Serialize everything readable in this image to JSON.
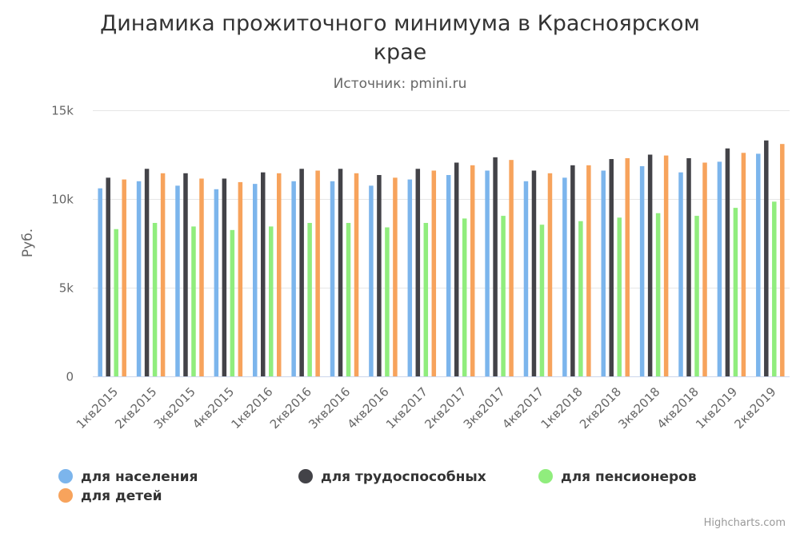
{
  "chart_data": {
    "type": "bar",
    "title_lines": [
      "Динамика прожиточного минимума в Красноярском",
      "крае"
    ],
    "subtitle": "Источник: pmini.ru",
    "ylabel": "Руб.",
    "xlabel": "",
    "ylim": [
      0,
      15000
    ],
    "yticks": [
      0,
      5000,
      10000,
      15000
    ],
    "ytick_labels": [
      "0",
      "5k",
      "10k",
      "15k"
    ],
    "grid": true,
    "legend_position": "bottom",
    "credits": "Highcharts.com",
    "categories": [
      "1кв2015",
      "2кв2015",
      "3кв2015",
      "4кв2015",
      "1кв2016",
      "2кв2016",
      "3кв2016",
      "4кв2016",
      "1кв2017",
      "2кв2017",
      "3кв2017",
      "4кв2017",
      "1кв2018",
      "2кв2018",
      "3кв2018",
      "4кв2018",
      "1кв2019",
      "2кв2019"
    ],
    "series": [
      {
        "name": "для населения",
        "color": "#7cb5ec",
        "values": [
          10600,
          11000,
          10750,
          10550,
          10850,
          11000,
          11000,
          10750,
          11100,
          11350,
          11600,
          11000,
          11200,
          11600,
          11850,
          11500,
          12100,
          12550
        ]
      },
      {
        "name": "для трудоспособных",
        "color": "#434348",
        "values": [
          11200,
          11700,
          11450,
          11150,
          11500,
          11700,
          11700,
          11350,
          11700,
          12050,
          12350,
          11600,
          11900,
          12250,
          12500,
          12300,
          12850,
          13300
        ]
      },
      {
        "name": "для пенсионеров",
        "color": "#90ed7d",
        "values": [
          8300,
          8650,
          8450,
          8250,
          8450,
          8650,
          8650,
          8400,
          8650,
          8900,
          9050,
          8550,
          8750,
          8950,
          9200,
          9050,
          9500,
          9850
        ]
      },
      {
        "name": "для детей",
        "color": "#f7a35c",
        "values": [
          11100,
          11450,
          11150,
          10950,
          11450,
          11600,
          11450,
          11200,
          11600,
          11900,
          12200,
          11450,
          11900,
          12300,
          12450,
          12050,
          12600,
          13100
        ]
      }
    ]
  }
}
